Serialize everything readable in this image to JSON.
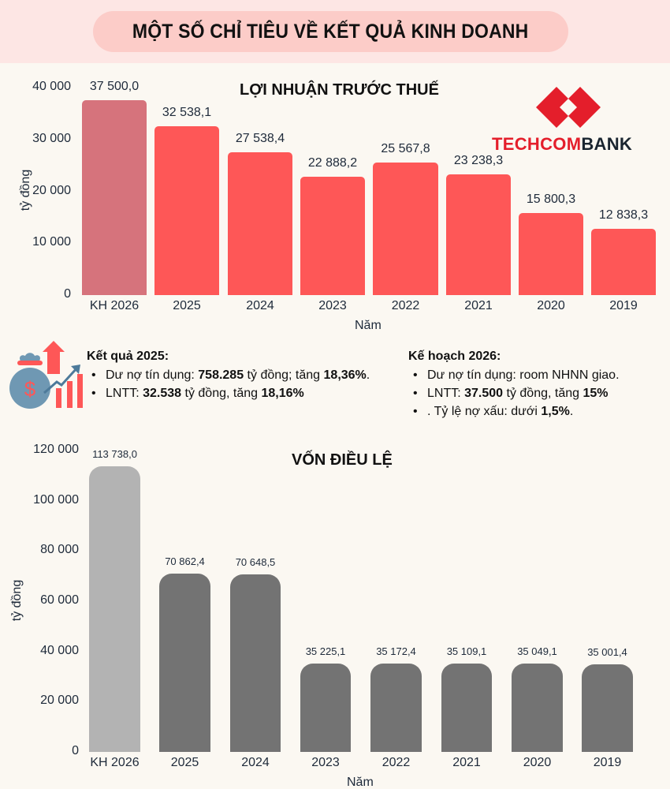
{
  "header": {
    "title": "MỘT SỐ CHỈ TIÊU VỀ KẾT QUẢ KINH DOANH"
  },
  "logo": {
    "part1": "TECHCOM",
    "part2": "BANK",
    "colors": {
      "red": "#e41e2b",
      "dark": "#1a2530"
    }
  },
  "profit_chart": {
    "title": "LỢI NHUẬN TRƯỚC THUẾ",
    "ylabel": "tỷ đồng",
    "xlabel": "Năm",
    "yticks": [
      "40 000",
      "30 000",
      "20 000",
      "10 000",
      "0"
    ],
    "categories": [
      "KH 2026",
      "2025",
      "2024",
      "2023",
      "2022",
      "2021",
      "2020",
      "2019"
    ],
    "value_labels": [
      "37 500,0",
      "32 538,1",
      "27 538,4",
      "22 888,2",
      "25 567,8",
      "23 238,3",
      "15 800,3",
      "12 838,3"
    ],
    "colors": {
      "plan": "#d6737c",
      "actual": "#fe5757"
    }
  },
  "results_2025": {
    "heading": "Kết quả 2025:",
    "items": [
      {
        "pre": "Dư nợ tín dụng: ",
        "b1": "758.285",
        "mid": " tỷ đồng; tăng ",
        "b2": "18,36%",
        "post": "."
      },
      {
        "pre": " LNTT: ",
        "b1": "32.538",
        "mid": " tỷ đồng, tăng ",
        "b2": "18,16%",
        "post": ""
      }
    ]
  },
  "plan_2026": {
    "heading": "Kế hoạch 2026:",
    "items": [
      {
        "pre": "Dư nợ tín dụng: room NHNN giao.",
        "b1": "",
        "mid": "",
        "b2": "",
        "post": ""
      },
      {
        "pre": " LNTT: ",
        "b1": "37.500",
        "mid": " tỷ đồng, tăng ",
        "b2": "15%",
        "post": ""
      },
      {
        "pre": ". Tỷ lệ nợ xấu: dưới ",
        "b1": "1,5%",
        "mid": ".",
        "b2": "",
        "post": ""
      }
    ]
  },
  "capital_chart": {
    "title": "VỐN ĐIỀU LỆ",
    "ylabel": "tỷ đồng",
    "xlabel": "Năm",
    "yticks": [
      "120 000",
      "100 000",
      "80 000",
      "60 000",
      "40 000",
      "20 000",
      "0"
    ],
    "categories": [
      "KH 2026",
      "2025",
      "2024",
      "2023",
      "2022",
      "2021",
      "2020",
      "2019"
    ],
    "value_labels": [
      "113 738,0",
      "70 862,4",
      "70 648,5",
      "35 225,1",
      "35 172,4",
      "35 109,1",
      "35 049,1",
      "35 001,4"
    ],
    "colors": {
      "plan": "#b3b3b3",
      "actual": "#737373"
    }
  },
  "chart_data": [
    {
      "type": "bar",
      "title": "LỢI NHUẬN TRƯỚC THUẾ",
      "xlabel": "Năm",
      "ylabel": "tỷ đồng",
      "categories": [
        "KH 2026",
        "2025",
        "2024",
        "2023",
        "2022",
        "2021",
        "2020",
        "2019"
      ],
      "values": [
        37500.0,
        32538.1,
        27538.4,
        22888.2,
        25567.8,
        23238.3,
        15800.3,
        12838.3
      ],
      "ylim": [
        0,
        40000
      ],
      "yticks": [
        0,
        10000,
        20000,
        30000,
        40000
      ],
      "grid": false,
      "legend": null
    },
    {
      "type": "bar",
      "title": "VỐN ĐIỀU LỆ",
      "xlabel": "Năm",
      "ylabel": "tỷ đồng",
      "categories": [
        "KH 2026",
        "2025",
        "2024",
        "2023",
        "2022",
        "2021",
        "2020",
        "2019"
      ],
      "values": [
        113738.0,
        70862.4,
        70648.5,
        35225.1,
        35172.4,
        35109.1,
        35049.1,
        35001.4
      ],
      "ylim": [
        0,
        120000
      ],
      "yticks": [
        0,
        20000,
        40000,
        60000,
        80000,
        100000,
        120000
      ],
      "grid": false,
      "legend": null
    }
  ]
}
